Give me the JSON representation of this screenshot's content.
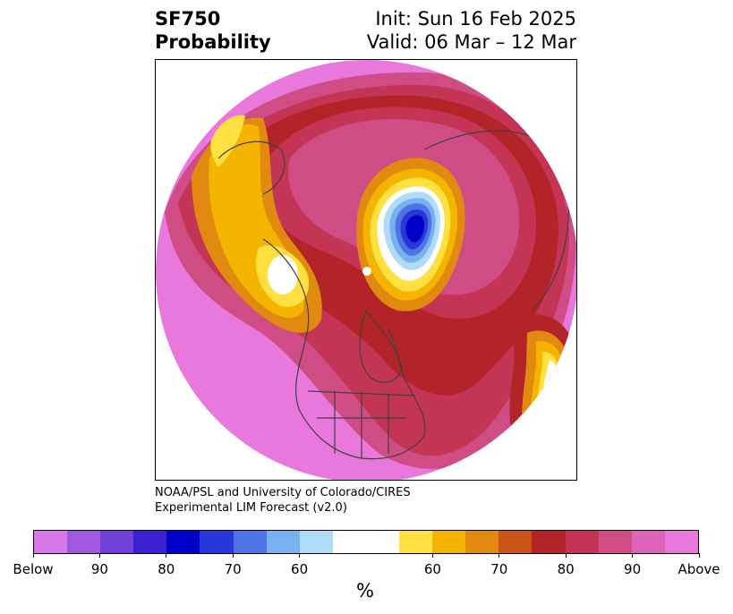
{
  "title": {
    "variable": "SF750",
    "product": "Probability",
    "init": "Init: Sun 16 Feb 2025",
    "valid": "Valid: 06 Mar – 12 Mar"
  },
  "credits": {
    "line1": "NOAA/PSL and University of Colorado/CIRES",
    "line2": "Experimental LIM Forecast (v2.0)"
  },
  "colorbar": {
    "colors": [
      "#d878e8",
      "#a058e0",
      "#7040d8",
      "#3a20d0",
      "#0000c8",
      "#2838d8",
      "#4c74e4",
      "#78b0f0",
      "#b0dcf8",
      "#ffffff",
      "#ffffff",
      "#fee040",
      "#f4b400",
      "#e08a10",
      "#c85418",
      "#b22428",
      "#c43454",
      "#d04c84",
      "#dc64b8",
      "#e878dc"
    ],
    "tick_labels": [
      "Below",
      "90",
      "80",
      "70",
      "60",
      "60",
      "70",
      "80",
      "90",
      "Above"
    ],
    "unit": "%"
  },
  "map": {
    "projection": "north-polar-stereographic",
    "palette": {
      "background": "#e878dc",
      "band_magenta": "#dc64b8",
      "band_pink": "#d04c84",
      "band_rose": "#c43454",
      "band_red": "#b22428",
      "band_darkorange": "#c85418",
      "band_orange": "#e08a10",
      "band_gold": "#f4b400",
      "band_yellow": "#fee040",
      "neutral": "#ffffff",
      "below_light": "#b0dcf8",
      "below_sky": "#78b0f0",
      "below_mid": "#4c74e4",
      "below_strong": "#2838d8",
      "below_core": "#0000c8",
      "coastline": "#404040"
    }
  }
}
